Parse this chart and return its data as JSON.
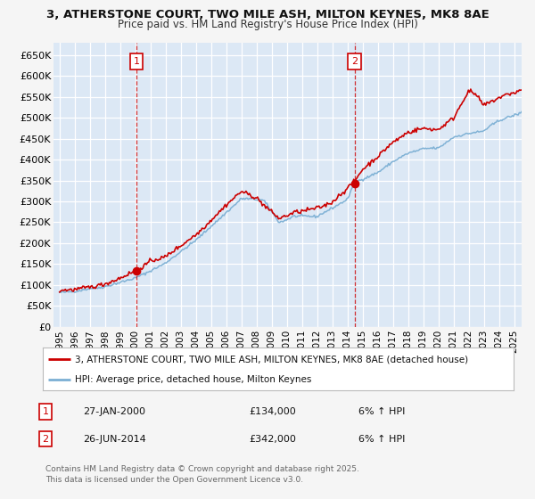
{
  "title_line1": "3, ATHERSTONE COURT, TWO MILE ASH, MILTON KEYNES, MK8 8AE",
  "title_line2": "Price paid vs. HM Land Registry's House Price Index (HPI)",
  "background_color": "#f5f5f5",
  "plot_bg_color": "#dce8f5",
  "grid_color": "#ffffff",
  "ylim": [
    0,
    680000
  ],
  "yticks": [
    0,
    50000,
    100000,
    150000,
    200000,
    250000,
    300000,
    350000,
    400000,
    450000,
    500000,
    550000,
    600000,
    650000
  ],
  "ytick_labels": [
    "£0",
    "£50K",
    "£100K",
    "£150K",
    "£200K",
    "£250K",
    "£300K",
    "£350K",
    "£400K",
    "£450K",
    "£500K",
    "£550K",
    "£600K",
    "£650K"
  ],
  "sale1_date": 2000.07,
  "sale1_price": 134000,
  "sale1_label": "1",
  "sale2_date": 2014.49,
  "sale2_price": 342000,
  "sale2_label": "2",
  "line_color_property": "#cc0000",
  "line_color_hpi": "#7bafd4",
  "sale_dot_color": "#cc0000",
  "legend_label_property": "3, ATHERSTONE COURT, TWO MILE ASH, MILTON KEYNES, MK8 8AE (detached house)",
  "legend_label_hpi": "HPI: Average price, detached house, Milton Keynes",
  "annotation1_date": "27-JAN-2000",
  "annotation1_price": "£134,000",
  "annotation1_hpi": "6% ↑ HPI",
  "annotation2_date": "26-JUN-2014",
  "annotation2_price": "£342,000",
  "annotation2_hpi": "6% ↑ HPI",
  "footnote": "Contains HM Land Registry data © Crown copyright and database right 2025.\nThis data is licensed under the Open Government Licence v3.0."
}
